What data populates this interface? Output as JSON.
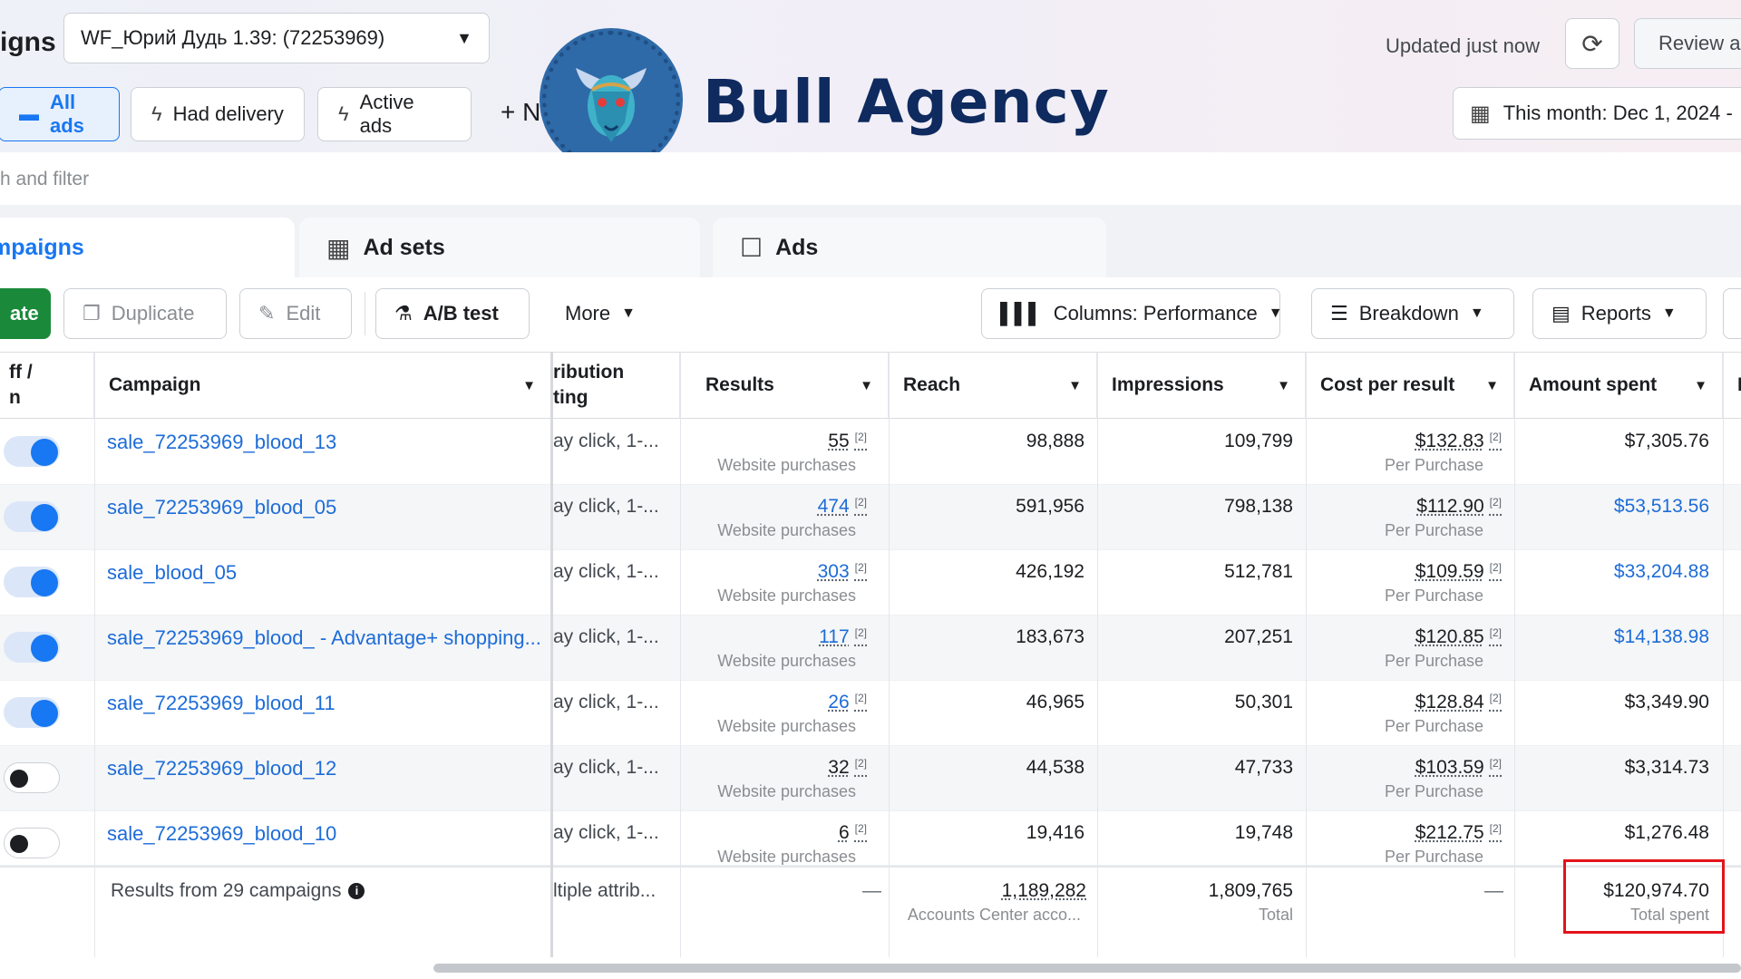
{
  "header": {
    "title_fragment": "igns",
    "account_selector": "WF_Юрий Дудь 1.39: (72253969)",
    "filters": [
      {
        "label": "All ads",
        "icon": "folder-icon"
      },
      {
        "label": "Had delivery",
        "icon": "bolt-icon"
      },
      {
        "label": "Active ads",
        "icon": "bolt-icon"
      }
    ],
    "more_fragment": "+ N",
    "brand": "Bull Agency",
    "updated": "Updated just now",
    "review_button": "Review a",
    "date_range": "This month: Dec 1, 2024 -"
  },
  "search": {
    "placeholder_fragment": "h and filter"
  },
  "tabs": [
    {
      "label": "mpaigns",
      "icon": "folder-icon"
    },
    {
      "label": "Ad sets",
      "icon": "grid-icon"
    },
    {
      "label": "Ads",
      "icon": "square-icon"
    }
  ],
  "toolbar": {
    "create": "ate",
    "duplicate": "Duplicate",
    "edit": "Edit",
    "ab_test": "A/B test",
    "more": "More",
    "columns": "Columns: Performance",
    "breakdown": "Breakdown",
    "reports": "Reports"
  },
  "table": {
    "headers": {
      "toggle": "ff /\nn",
      "campaign": "Campaign",
      "attribution": "ribution\nting",
      "results": "Results",
      "reach": "Reach",
      "impressions": "Impressions",
      "cost_per_result": "Cost per result",
      "amount_spent": "Amount spent",
      "extra": "I"
    },
    "rows": [
      {
        "on": true,
        "campaign": "sale_72253969_blood_13",
        "attribution": "ay click, 1-...",
        "results": "55",
        "results_label": "Website purchases",
        "reach": "98,888",
        "impressions": "109,799",
        "cpr": "$132.83",
        "cpr_label": "Per Purchase",
        "spent": "$7,305.76",
        "spent_link": false
      },
      {
        "on": true,
        "campaign": "sale_72253969_blood_05",
        "attribution": "ay click, 1-...",
        "results": "474",
        "results_label": "Website purchases",
        "reach": "591,956",
        "impressions": "798,138",
        "cpr": "$112.90",
        "cpr_label": "Per Purchase",
        "spent": "$53,513.56",
        "spent_link": true
      },
      {
        "on": true,
        "campaign": "sale_blood_05",
        "attribution": "ay click, 1-...",
        "results": "303",
        "results_label": "Website purchases",
        "reach": "426,192",
        "impressions": "512,781",
        "cpr": "$109.59",
        "cpr_label": "Per Purchase",
        "spent": "$33,204.88",
        "spent_link": true
      },
      {
        "on": true,
        "campaign": "sale_72253969_blood_ - Advantage+ shopping...",
        "attribution": "ay click, 1-...",
        "results": "117",
        "results_label": "Website purchases",
        "reach": "183,673",
        "impressions": "207,251",
        "cpr": "$120.85",
        "cpr_label": "Per Purchase",
        "spent": "$14,138.98",
        "spent_link": true
      },
      {
        "on": true,
        "campaign": "sale_72253969_blood_11",
        "attribution": "ay click, 1-...",
        "results": "26",
        "results_label": "Website purchases",
        "reach": "46,965",
        "impressions": "50,301",
        "cpr": "$128.84",
        "cpr_label": "Per Purchase",
        "spent": "$3,349.90",
        "spent_link": false
      },
      {
        "on": false,
        "campaign": "sale_72253969_blood_12",
        "attribution": "ay click, 1-...",
        "results": "32",
        "results_label": "Website purchases",
        "reach": "44,538",
        "impressions": "47,733",
        "cpr": "$103.59",
        "cpr_label": "Per Purchase",
        "spent": "$3,314.73",
        "spent_link": false
      },
      {
        "on": false,
        "campaign": "sale_72253969_blood_10",
        "attribution": "ay click, 1-...",
        "results": "6",
        "results_label": "Website purchases",
        "reach": "19,416",
        "impressions": "19,748",
        "cpr": "$212.75",
        "cpr_label": "Per Purchase",
        "spent": "$1,276.48",
        "spent_link": false
      }
    ],
    "footnote_mark": "[2]",
    "totals": {
      "label": "Results from 29 campaigns",
      "attribution": "ltiple attrib...",
      "results": "—",
      "reach": "1,189,282",
      "reach_label": "Accounts Center acco...",
      "impressions": "1,809,765",
      "impressions_label": "Total",
      "cpr": "—",
      "spent": "$120,974.70",
      "spent_label": "Total spent"
    }
  },
  "colors": {
    "accent": "#1877f2",
    "link": "#1d6cd8",
    "create_button": "#1a8a3a",
    "highlight": "#e3131b",
    "brand_text": "#0e2a5e"
  }
}
